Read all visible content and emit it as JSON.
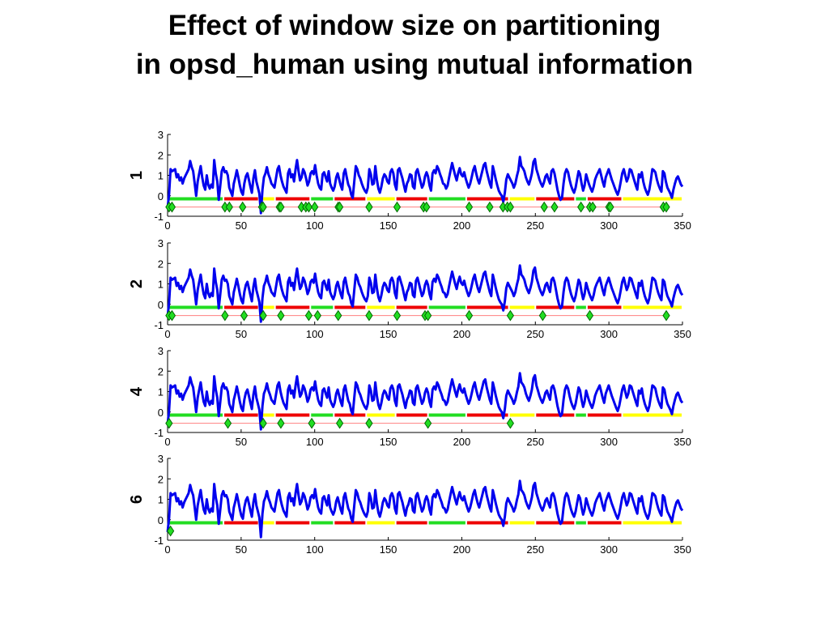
{
  "title_line1": "Effect of window size on partitioning",
  "title_line2": "in opsd_human using mutual information",
  "colors": {
    "signal": "#0000ee",
    "segment_red": "#ee0000",
    "segment_yellow": "#ffff00",
    "segment_green": "#22dd22",
    "marker": "#22dd22",
    "baseline": "#ff8080"
  },
  "chart_data": {
    "type": "line",
    "xlim": [
      0,
      350
    ],
    "ylim": [
      -1,
      3
    ],
    "x_ticks": [
      "0",
      "50",
      "100",
      "150",
      "200",
      "250",
      "300",
      "350"
    ],
    "y_ticks": [
      "3",
      "2",
      "1",
      "0",
      "-1"
    ],
    "grid": false,
    "panels": [
      {
        "label": "1",
        "segments": [
          {
            "from": 0,
            "to": 38,
            "color": "green"
          },
          {
            "from": 38,
            "to": 62,
            "color": "red"
          },
          {
            "from": 62,
            "to": 73,
            "color": "yellow"
          },
          {
            "from": 73,
            "to": 97,
            "color": "red"
          },
          {
            "from": 97,
            "to": 113,
            "color": "green"
          },
          {
            "from": 113,
            "to": 135,
            "color": "red"
          },
          {
            "from": 135,
            "to": 155,
            "color": "yellow"
          },
          {
            "from": 155,
            "to": 177,
            "color": "red"
          },
          {
            "from": 177,
            "to": 203,
            "color": "green"
          },
          {
            "from": 203,
            "to": 232,
            "color": "red"
          },
          {
            "from": 232,
            "to": 250,
            "color": "yellow"
          },
          {
            "from": 250,
            "to": 277,
            "color": "red"
          },
          {
            "from": 277,
            "to": 285,
            "color": "green"
          },
          {
            "from": 285,
            "to": 309,
            "color": "red"
          },
          {
            "from": 309,
            "to": 350,
            "color": "yellow"
          }
        ],
        "markers": [
          1,
          3,
          39,
          42,
          51,
          64,
          65,
          76,
          77,
          91,
          94,
          96,
          100,
          116,
          117,
          137,
          156,
          174,
          176,
          205,
          219,
          228,
          231,
          233,
          256,
          263,
          281,
          287,
          289,
          300,
          301,
          337,
          339
        ]
      },
      {
        "label": "2",
        "segments": [
          {
            "from": 0,
            "to": 38,
            "color": "green"
          },
          {
            "from": 38,
            "to": 62,
            "color": "red"
          },
          {
            "from": 62,
            "to": 73,
            "color": "yellow"
          },
          {
            "from": 73,
            "to": 97,
            "color": "red"
          },
          {
            "from": 97,
            "to": 113,
            "color": "green"
          },
          {
            "from": 113,
            "to": 135,
            "color": "red"
          },
          {
            "from": 135,
            "to": 155,
            "color": "yellow"
          },
          {
            "from": 155,
            "to": 177,
            "color": "red"
          },
          {
            "from": 177,
            "to": 203,
            "color": "green"
          },
          {
            "from": 203,
            "to": 232,
            "color": "red"
          },
          {
            "from": 232,
            "to": 250,
            "color": "yellow"
          },
          {
            "from": 250,
            "to": 277,
            "color": "red"
          },
          {
            "from": 277,
            "to": 285,
            "color": "green"
          },
          {
            "from": 285,
            "to": 309,
            "color": "red"
          },
          {
            "from": 309,
            "to": 350,
            "color": "yellow"
          }
        ],
        "markers": [
          1,
          3,
          39,
          52,
          65,
          77,
          96,
          102,
          116,
          137,
          156,
          175,
          177,
          205,
          233,
          255,
          287,
          339
        ]
      },
      {
        "label": "4",
        "segments": [
          {
            "from": 0,
            "to": 38,
            "color": "green"
          },
          {
            "from": 38,
            "to": 62,
            "color": "red"
          },
          {
            "from": 62,
            "to": 73,
            "color": "yellow"
          },
          {
            "from": 73,
            "to": 97,
            "color": "red"
          },
          {
            "from": 97,
            "to": 113,
            "color": "green"
          },
          {
            "from": 113,
            "to": 135,
            "color": "red"
          },
          {
            "from": 135,
            "to": 155,
            "color": "yellow"
          },
          {
            "from": 155,
            "to": 177,
            "color": "red"
          },
          {
            "from": 177,
            "to": 203,
            "color": "green"
          },
          {
            "from": 203,
            "to": 232,
            "color": "red"
          },
          {
            "from": 232,
            "to": 250,
            "color": "yellow"
          },
          {
            "from": 250,
            "to": 277,
            "color": "red"
          },
          {
            "from": 277,
            "to": 285,
            "color": "green"
          },
          {
            "from": 285,
            "to": 309,
            "color": "red"
          },
          {
            "from": 309,
            "to": 350,
            "color": "yellow"
          }
        ],
        "markers": [
          1,
          41,
          65,
          77,
          98,
          117,
          137,
          177,
          233
        ]
      },
      {
        "label": "6",
        "segments": [
          {
            "from": 0,
            "to": 38,
            "color": "green"
          },
          {
            "from": 38,
            "to": 62,
            "color": "red"
          },
          {
            "from": 62,
            "to": 73,
            "color": "yellow"
          },
          {
            "from": 73,
            "to": 97,
            "color": "red"
          },
          {
            "from": 97,
            "to": 113,
            "color": "green"
          },
          {
            "from": 113,
            "to": 135,
            "color": "red"
          },
          {
            "from": 135,
            "to": 155,
            "color": "yellow"
          },
          {
            "from": 155,
            "to": 177,
            "color": "red"
          },
          {
            "from": 177,
            "to": 203,
            "color": "green"
          },
          {
            "from": 203,
            "to": 232,
            "color": "red"
          },
          {
            "from": 232,
            "to": 250,
            "color": "yellow"
          },
          {
            "from": 250,
            "to": 277,
            "color": "red"
          },
          {
            "from": 277,
            "to": 285,
            "color": "green"
          },
          {
            "from": 285,
            "to": 309,
            "color": "red"
          },
          {
            "from": 309,
            "to": 350,
            "color": "yellow"
          }
        ],
        "markers": [
          2
        ]
      }
    ],
    "signal": {
      "x_range": [
        0,
        350
      ],
      "y": [
        -0.6,
        0.1,
        1.3,
        1.2,
        1.25,
        1.3,
        0.9,
        1.05,
        0.75,
        0.9,
        0.6,
        0.85,
        1.0,
        1.15,
        1.3,
        1.7,
        1.4,
        1.2,
        0.6,
        0.0,
        0.7,
        1.1,
        1.45,
        0.9,
        0.5,
        0.3,
        1.0,
        0.55,
        0.35,
        0.55,
        0.4,
        1.75,
        1.1,
        0.7,
        -0.2,
        0.5,
        1.2,
        1.4,
        1.15,
        1.2,
        1.0,
        0.4,
        0.2,
        0.0,
        0.6,
        0.9,
        1.25,
        0.9,
        0.5,
        0.2,
        0.05,
        0.6,
        0.95,
        1.1,
        0.8,
        0.45,
        0.15,
        0.85,
        1.25,
        0.7,
        0.4,
        0.1,
        -0.85,
        0.3,
        0.9,
        1.1,
        1.4,
        1.05,
        0.85,
        0.6,
        0.5,
        0.4,
        0.85,
        1.3,
        1.45,
        1.0,
        0.7,
        0.45,
        0.3,
        0.15,
        1.1,
        1.3,
        0.9,
        1.05,
        0.7,
        1.3,
        1.75,
        1.2,
        0.75,
        0.9,
        1.3,
        1.15,
        0.85,
        0.5,
        0.7,
        1.1,
        1.2,
        1.05,
        1.5,
        1.0,
        0.6,
        0.4,
        0.3,
        1.05,
        1.15,
        0.9,
        0.7,
        1.2,
        0.6,
        0.4,
        0.25,
        0.45,
        0.9,
        1.1,
        0.8,
        0.5,
        0.3,
        1.1,
        1.3,
        0.9,
        0.55,
        0.4,
        0.05,
        -0.1,
        0.7,
        1.45,
        1.3,
        1.0,
        0.85,
        0.6,
        0.4,
        0.25,
        0.15,
        0.4,
        1.3,
        1.05,
        0.55,
        0.6,
        1.45,
        0.8,
        0.35,
        0.15,
        0.45,
        0.85,
        1.05,
        0.95,
        0.7,
        0.6,
        1.15,
        1.3,
        1.1,
        0.55,
        0.3,
        1.25,
        1.35,
        1.1,
        0.85,
        0.5,
        0.2,
        0.6,
        0.75,
        1.05,
        1.0,
        0.45,
        0.35,
        1.15,
        1.3,
        1.0,
        0.7,
        0.4,
        0.55,
        0.95,
        1.15,
        0.95,
        0.5,
        0.25,
        1.1,
        1.25,
        1.1,
        1.45,
        1.3,
        1.05,
        0.85,
        0.6,
        0.55,
        0.35,
        0.5,
        0.9,
        1.25,
        1.6,
        1.3,
        1.0,
        0.75,
        1.1,
        1.35,
        1.05,
        0.95,
        1.15,
        0.85,
        0.6,
        0.4,
        0.6,
        0.9,
        1.25,
        1.45,
        1.1,
        0.8,
        0.6,
        0.9,
        1.2,
        1.5,
        1.6,
        1.2,
        0.9,
        0.6,
        0.4,
        1.45,
        1.15,
        0.8,
        0.5,
        0.25,
        0.1,
        0.0,
        -0.3,
        0.15,
        0.8,
        1.05,
        0.9,
        0.75,
        0.6,
        0.4,
        0.6,
        0.95,
        1.25,
        1.9,
        1.45,
        1.35,
        1.2,
        0.9,
        0.7,
        0.55,
        0.8,
        1.1,
        1.65,
        1.8,
        1.3,
        1.05,
        0.8,
        0.6,
        0.45,
        0.65,
        0.95,
        1.05,
        0.8,
        0.6,
        1.2,
        1.3,
        1.1,
        0.7,
        0.3,
        0.0,
        -0.2,
        -0.1,
        0.6,
        1.1,
        1.3,
        1.15,
        0.8,
        0.5,
        0.3,
        0.15,
        0.4,
        0.8,
        1.2,
        1.05,
        0.6,
        0.25,
        0.5,
        1.05,
        0.8,
        0.55,
        0.35,
        0.2,
        0.45,
        0.8,
        1.0,
        1.15,
        1.3,
        1.0,
        0.7,
        0.45,
        0.9,
        1.1,
        1.3,
        1.05,
        0.8,
        0.6,
        0.4,
        0.2,
        0.05,
        0.3,
        0.7,
        1.1,
        1.3,
        1.0,
        0.7,
        0.9,
        1.3,
        1.25,
        1.0,
        0.75,
        0.5,
        0.3,
        1.05,
        0.9,
        1.15,
        0.7,
        0.4,
        0.2,
        0.05,
        0.3,
        0.75,
        1.3,
        1.25,
        1.15,
        0.8,
        0.55,
        0.35,
        0.2,
        1.2,
        1.1,
        0.7,
        0.4,
        0.25,
        0.1,
        -0.1,
        0.3,
        0.6,
        0.85,
        0.95,
        0.75,
        0.55,
        0.45
      ]
    }
  }
}
